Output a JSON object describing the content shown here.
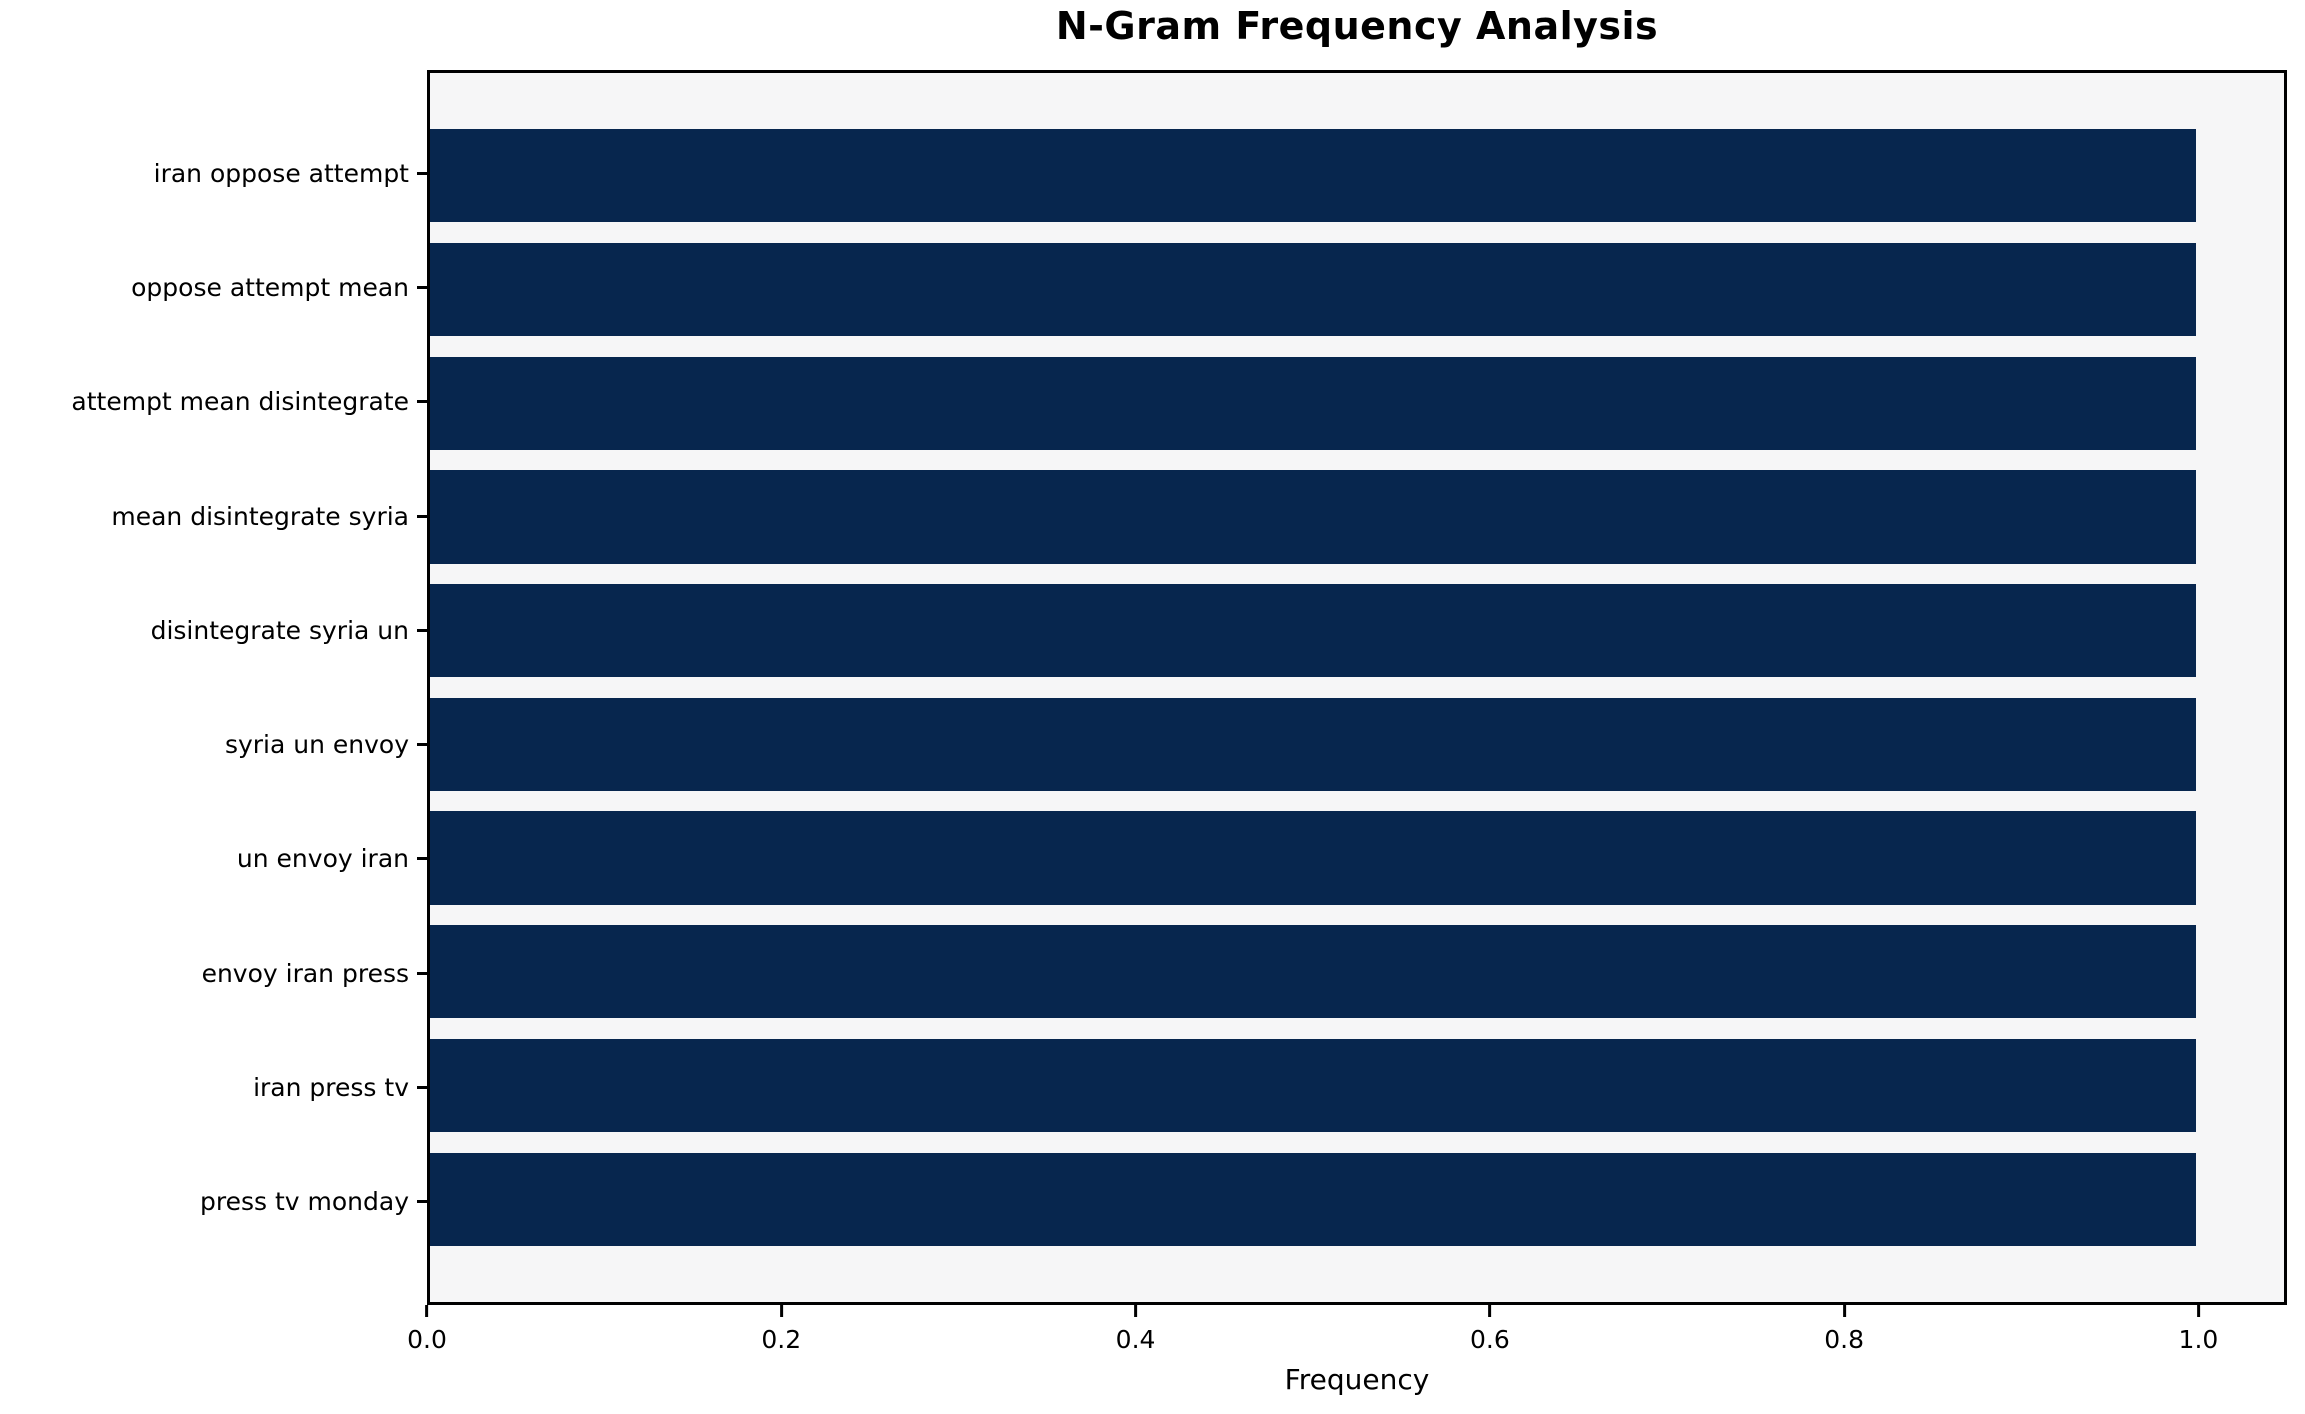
{
  "chart_data": {
    "type": "bar",
    "orientation": "horizontal",
    "title": "N-Gram Frequency Analysis",
    "xlabel": "Frequency",
    "ylabel": "",
    "categories": [
      "iran oppose attempt",
      "oppose attempt mean",
      "attempt mean disintegrate",
      "mean disintegrate syria",
      "disintegrate syria un",
      "syria un envoy",
      "un envoy iran",
      "envoy iran press",
      "iran press tv",
      "press tv monday"
    ],
    "values": [
      1.0,
      1.0,
      1.0,
      1.0,
      1.0,
      1.0,
      1.0,
      1.0,
      1.0,
      1.0
    ],
    "xlim": [
      0.0,
      1.05
    ],
    "xticks": [
      0.0,
      0.2,
      0.4,
      0.6,
      0.8,
      1.0
    ],
    "xtick_labels": [
      "0.0",
      "0.2",
      "0.4",
      "0.6",
      "0.8",
      "1.0"
    ],
    "grid": false,
    "legend": "none",
    "colors": {
      "bar": "#07264e",
      "plot_background": "#f6f6f7",
      "figure_background": "#ffffff",
      "axis": "#000000",
      "text": "#000000"
    }
  }
}
